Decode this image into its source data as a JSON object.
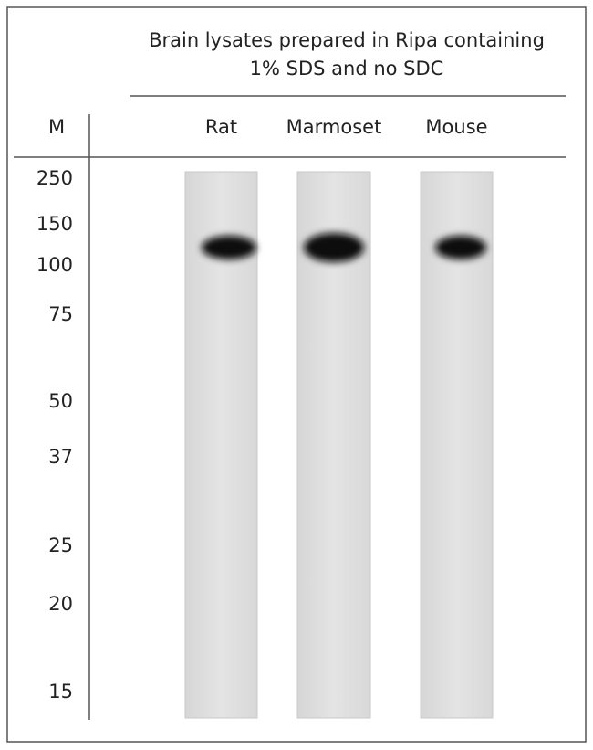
{
  "header": {
    "title_lines": [
      "Brain lysates prepared in Ripa containing",
      "1% SDS and no SDC"
    ]
  },
  "marker": {
    "label": "M",
    "sizes": [
      "250",
      "150",
      "100",
      "75",
      "50",
      "37",
      "25",
      "20",
      "15"
    ]
  },
  "lanes": [
    {
      "label": "Rat"
    },
    {
      "label": "Marmoset"
    },
    {
      "label": "Mouse"
    }
  ]
}
